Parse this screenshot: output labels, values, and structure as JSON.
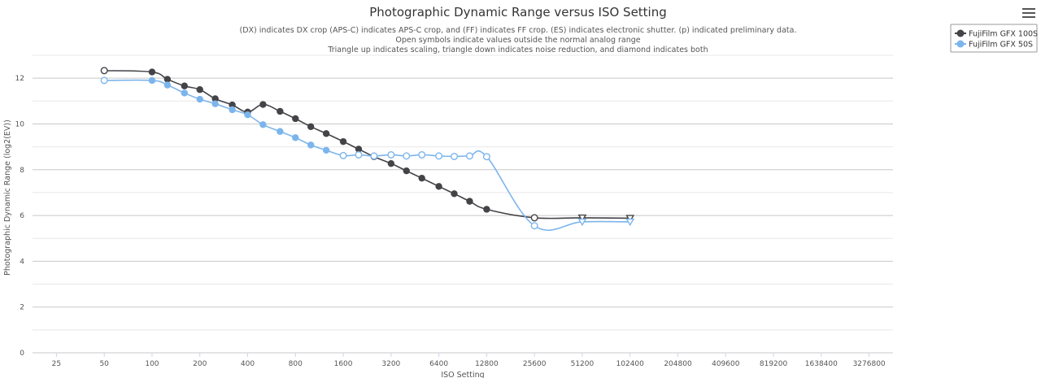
{
  "chart_data": {
    "type": "line",
    "title": "Photographic Dynamic Range versus ISO Setting",
    "subtitle": [
      "(DX) indicates DX crop (APS-C) indicates APS-C crop, and (FF) indicates FF crop. (ES) indicates electronic shutter. (p) indicated preliminary data.",
      "Open symbols indicate values outside the normal analog range",
      "Triangle up indicates scaling, triangle down indicates noise reduction, and diamond indicates both"
    ],
    "xlabel": "ISO Setting",
    "ylabel": "Photographic Dynamic Range (log2(EV))",
    "x_scale": "log2",
    "x_ticks": [
      25,
      50,
      100,
      200,
      400,
      800,
      1600,
      3200,
      6400,
      12800,
      25600,
      51200,
      102400,
      204800,
      409600,
      819200,
      1638400,
      3276800
    ],
    "ylim": [
      0,
      13
    ],
    "y_ticks": [
      0,
      2,
      4,
      6,
      8,
      10,
      12
    ],
    "grid": true,
    "legend_position": "top-right",
    "series": [
      {
        "name": "FujiFilm GFX 100S",
        "color": "#434348",
        "points": [
          {
            "x": 50,
            "y": 12.33,
            "marker": "open-circle"
          },
          {
            "x": 100,
            "y": 12.27,
            "marker": "circle"
          },
          {
            "x": 125,
            "y": 11.95,
            "marker": "circle"
          },
          {
            "x": 160,
            "y": 11.66,
            "marker": "circle"
          },
          {
            "x": 200,
            "y": 11.5,
            "marker": "circle"
          },
          {
            "x": 250,
            "y": 11.1,
            "marker": "circle"
          },
          {
            "x": 320,
            "y": 10.83,
            "marker": "circle"
          },
          {
            "x": 400,
            "y": 10.52,
            "marker": "circle"
          },
          {
            "x": 500,
            "y": 10.85,
            "marker": "circle"
          },
          {
            "x": 640,
            "y": 10.55,
            "marker": "circle"
          },
          {
            "x": 800,
            "y": 10.23,
            "marker": "circle"
          },
          {
            "x": 1000,
            "y": 9.88,
            "marker": "circle"
          },
          {
            "x": 1250,
            "y": 9.58,
            "marker": "circle"
          },
          {
            "x": 1600,
            "y": 9.23,
            "marker": "circle"
          },
          {
            "x": 2000,
            "y": 8.9,
            "marker": "circle"
          },
          {
            "x": 2500,
            "y": 8.57,
            "marker": "circle"
          },
          {
            "x": 3200,
            "y": 8.27,
            "marker": "circle"
          },
          {
            "x": 4000,
            "y": 7.95,
            "marker": "circle"
          },
          {
            "x": 5000,
            "y": 7.63,
            "marker": "circle"
          },
          {
            "x": 6400,
            "y": 7.27,
            "marker": "circle"
          },
          {
            "x": 8000,
            "y": 6.95,
            "marker": "circle"
          },
          {
            "x": 10000,
            "y": 6.62,
            "marker": "circle"
          },
          {
            "x": 12800,
            "y": 6.27,
            "marker": "circle"
          },
          {
            "x": 25600,
            "y": 5.9,
            "marker": "open-circle"
          },
          {
            "x": 51200,
            "y": 5.9,
            "marker": "triangle-down"
          },
          {
            "x": 102400,
            "y": 5.88,
            "marker": "triangle-down"
          }
        ]
      },
      {
        "name": "FujiFilm GFX 50S",
        "color": "#7cb5ec",
        "points": [
          {
            "x": 50,
            "y": 11.9,
            "marker": "open-circle"
          },
          {
            "x": 100,
            "y": 11.9,
            "marker": "circle"
          },
          {
            "x": 125,
            "y": 11.7,
            "marker": "circle"
          },
          {
            "x": 160,
            "y": 11.35,
            "marker": "circle"
          },
          {
            "x": 200,
            "y": 11.08,
            "marker": "circle"
          },
          {
            "x": 250,
            "y": 10.88,
            "marker": "circle"
          },
          {
            "x": 320,
            "y": 10.62,
            "marker": "circle"
          },
          {
            "x": 400,
            "y": 10.4,
            "marker": "circle"
          },
          {
            "x": 500,
            "y": 9.97,
            "marker": "circle"
          },
          {
            "x": 640,
            "y": 9.67,
            "marker": "circle"
          },
          {
            "x": 800,
            "y": 9.4,
            "marker": "circle"
          },
          {
            "x": 1000,
            "y": 9.08,
            "marker": "circle"
          },
          {
            "x": 1250,
            "y": 8.85,
            "marker": "circle"
          },
          {
            "x": 1600,
            "y": 8.62,
            "marker": "open-circle"
          },
          {
            "x": 2000,
            "y": 8.65,
            "marker": "open-circle"
          },
          {
            "x": 2500,
            "y": 8.6,
            "marker": "open-circle"
          },
          {
            "x": 3200,
            "y": 8.65,
            "marker": "open-circle"
          },
          {
            "x": 4000,
            "y": 8.6,
            "marker": "open-circle"
          },
          {
            "x": 5000,
            "y": 8.65,
            "marker": "open-circle"
          },
          {
            "x": 6400,
            "y": 8.6,
            "marker": "open-circle"
          },
          {
            "x": 8000,
            "y": 8.58,
            "marker": "open-circle"
          },
          {
            "x": 10000,
            "y": 8.6,
            "marker": "open-circle"
          },
          {
            "x": 12800,
            "y": 8.57,
            "marker": "open-circle"
          },
          {
            "x": 25600,
            "y": 5.55,
            "marker": "open-circle"
          },
          {
            "x": 51200,
            "y": 5.72,
            "marker": "triangle-down"
          },
          {
            "x": 102400,
            "y": 5.72,
            "marker": "triangle-down"
          }
        ]
      }
    ]
  },
  "icons": {
    "menu": "hamburger-menu-icon"
  }
}
